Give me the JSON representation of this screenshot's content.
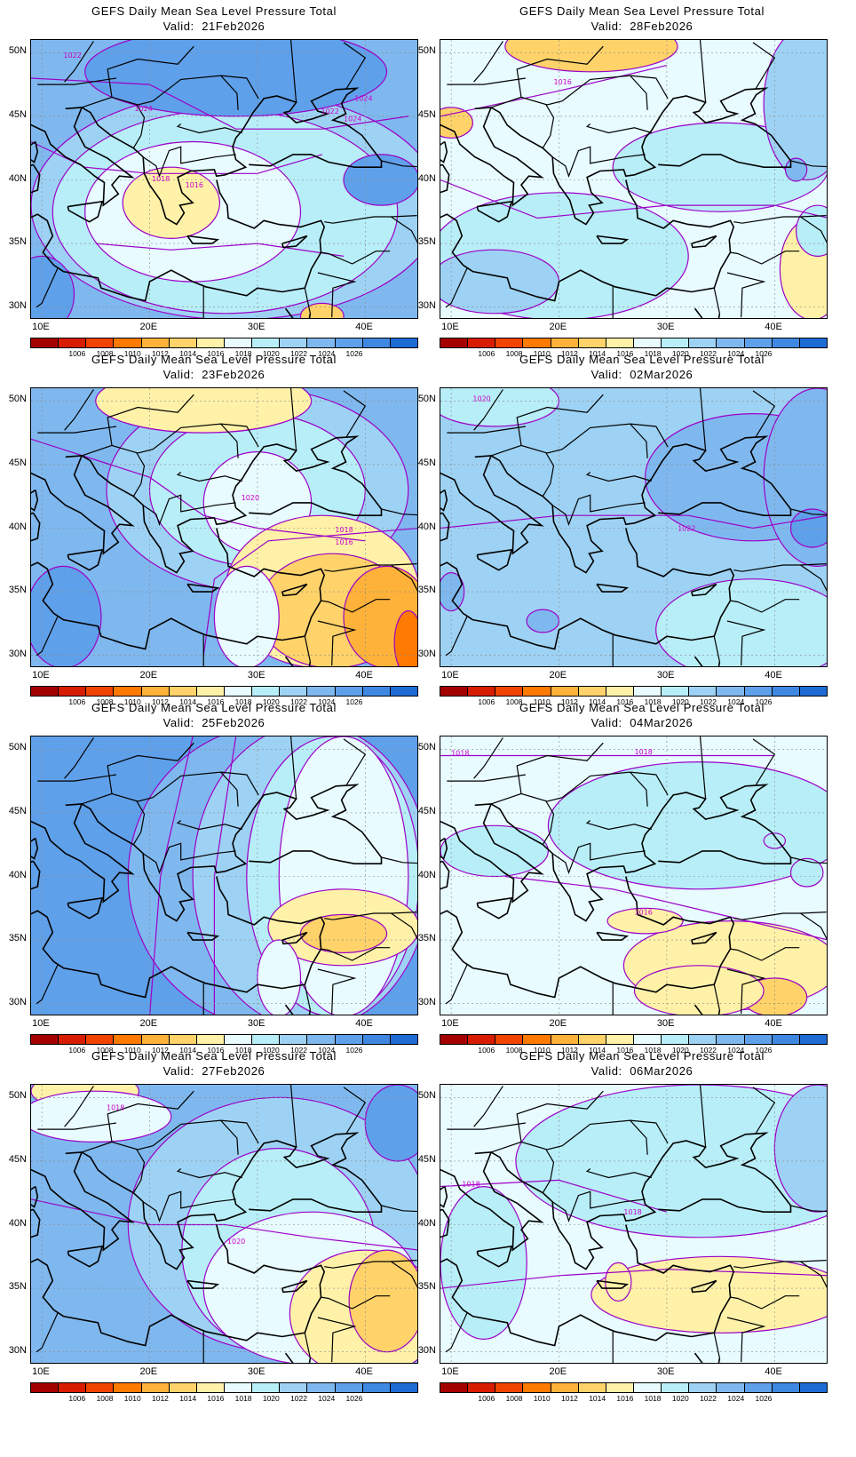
{
  "variable_title": "GEFS Daily Mean Sea Level Pressure Total",
  "valid_prefix": "Valid:",
  "axis": {
    "lat_ticks": [
      "50N",
      "45N",
      "40N",
      "35N",
      "30N"
    ],
    "lon_ticks": [
      "10E",
      "20E",
      "30E",
      "40E"
    ]
  },
  "colorbar": {
    "colors": [
      "#a50000",
      "#d81c00",
      "#f04400",
      "#ff7a00",
      "#ffb23a",
      "#ffd36a",
      "#fff2a8",
      "#e8fbff",
      "#b8eef8",
      "#9ed2f4",
      "#7fb8ef",
      "#5fa0ea",
      "#3f88e2",
      "#1f6bd6"
    ],
    "labels": [
      "1006",
      "1008",
      "1010",
      "1012",
      "1014",
      "1016",
      "1018",
      "1020",
      "1022",
      "1024",
      "1026"
    ]
  },
  "panels": [
    {
      "valid": "21Feb2026",
      "labels": [
        "1022",
        "1024",
        "1024",
        "1022",
        "1024",
        "1018",
        "1016"
      ]
    },
    {
      "valid": "28Feb2026",
      "labels": [
        "1016"
      ]
    },
    {
      "valid": "23Feb2026",
      "labels": [
        "1020",
        "1018",
        "1016"
      ]
    },
    {
      "valid": "02Mar2026",
      "labels": [
        "1020",
        "1022"
      ]
    },
    {
      "valid": "25Feb2026",
      "labels": []
    },
    {
      "valid": "04Mar2026",
      "labels": [
        "1018",
        "1018",
        "1016"
      ]
    },
    {
      "valid": "27Feb2026",
      "labels": [
        "1018",
        "1020"
      ]
    },
    {
      "valid": "06Mar2026",
      "labels": [
        "1018",
        "1018"
      ]
    }
  ]
}
